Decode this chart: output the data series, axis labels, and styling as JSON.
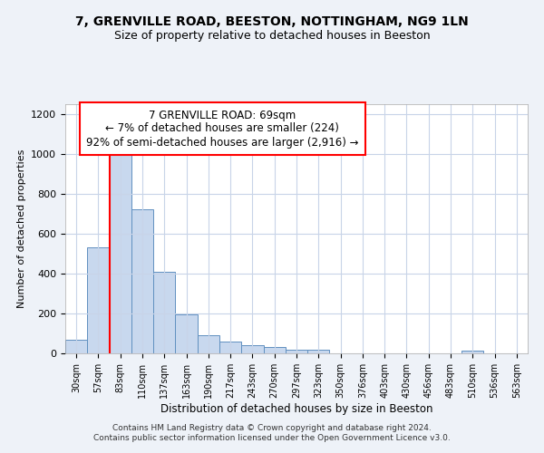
{
  "title1": "7, GRENVILLE ROAD, BEESTON, NOTTINGHAM, NG9 1LN",
  "title2": "Size of property relative to detached houses in Beeston",
  "xlabel": "Distribution of detached houses by size in Beeston",
  "ylabel": "Number of detached properties",
  "bar_color": "#c8d8ee",
  "bar_edge_color": "#6090c0",
  "categories": [
    "30sqm",
    "57sqm",
    "83sqm",
    "110sqm",
    "137sqm",
    "163sqm",
    "190sqm",
    "217sqm",
    "243sqm",
    "270sqm",
    "297sqm",
    "323sqm",
    "350sqm",
    "376sqm",
    "403sqm",
    "430sqm",
    "456sqm",
    "483sqm",
    "510sqm",
    "536sqm",
    "563sqm"
  ],
  "values": [
    70,
    530,
    1000,
    725,
    408,
    197,
    90,
    60,
    40,
    32,
    20,
    20,
    0,
    0,
    0,
    0,
    0,
    0,
    12,
    0,
    0
  ],
  "ylim": [
    0,
    1250
  ],
  "yticks": [
    0,
    200,
    400,
    600,
    800,
    1000,
    1200
  ],
  "red_line_x": 1.5,
  "annotation_text": "7 GRENVILLE ROAD: 69sqm\n← 7% of detached houses are smaller (224)\n92% of semi-detached houses are larger (2,916) →",
  "footer1": "Contains HM Land Registry data © Crown copyright and database right 2024.",
  "footer2": "Contains public sector information licensed under the Open Government Licence v3.0.",
  "bg_color": "#eef2f8",
  "plot_bg_color": "#ffffff",
  "grid_color": "#c8d4e8"
}
